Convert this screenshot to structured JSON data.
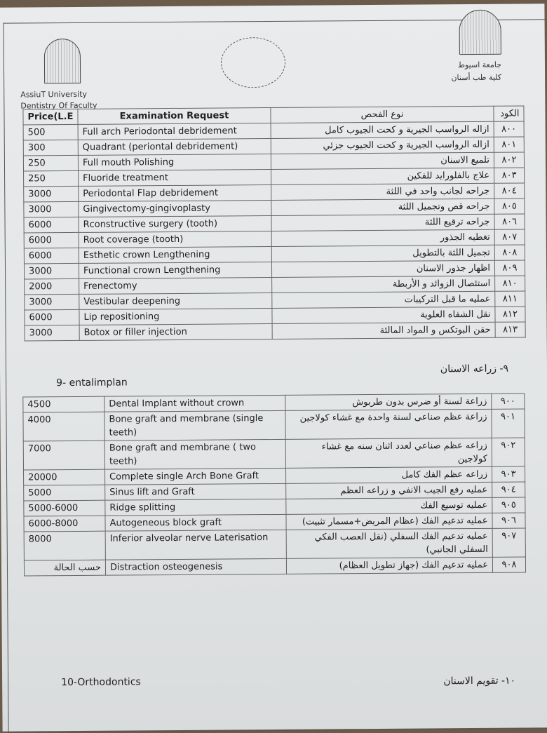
{
  "header": {
    "university_en": "AssiuT University",
    "faculty_en": "Dentistry Of Faculty",
    "university_ar": "جامعة اسيوط",
    "faculty_ar": "كلية طب أسنان"
  },
  "table1": {
    "headers": {
      "price": "Price(L.E",
      "exam": "Examination Request",
      "exam_ar": "نوع الفحص",
      "code": "الكود"
    },
    "rows": [
      {
        "price": "500",
        "exam": "Full arch Periodontal debridement",
        "exam_ar": "ازاله الرواسب الجيرية و كحت الجيوب كامل",
        "code": "٨٠٠"
      },
      {
        "price": "300",
        "exam": "Quadrant (periontal debridement)",
        "exam_ar": "ازاله الرواسب الجيرية و كحت الجيوب جزئي",
        "code": "٨٠١"
      },
      {
        "price": "250",
        "exam": "Full mouth Polishing",
        "exam_ar": "تلميع الاسنان",
        "code": "٨٠٢"
      },
      {
        "price": "250",
        "exam": "Fluoride treatment",
        "exam_ar": "علاج بالفلورايد للفكين",
        "code": "٨٠٣"
      },
      {
        "price": "3000",
        "exam": "Periodontal Flap debridement",
        "exam_ar": "جراحه لجانب واحد في اللثة",
        "code": "٨٠٤"
      },
      {
        "price": "3000",
        "exam": "Gingivectomy-gingivoplasty",
        "exam_ar": "جراحه قص وتجميل اللثة",
        "code": "٨٠٥"
      },
      {
        "price": "6000",
        "exam": "Rconstructive surgery (tooth)",
        "exam_ar": "جراحه ترقيع اللثة",
        "code": "٨٠٦"
      },
      {
        "price": "6000",
        "exam": "Root coverage (tooth)",
        "exam_ar": "تغطيه الجذور",
        "code": "٨٠٧"
      },
      {
        "price": "6000",
        "exam": "Esthetic crown Lengthening",
        "exam_ar": "تجميل اللثة بالتطويل",
        "code": "٨٠٨"
      },
      {
        "price": "3000",
        "exam": "Functional crown Lengthening",
        "exam_ar": "اظهار جذور الاسنان",
        "code": "٨٠٩"
      },
      {
        "price": "2000",
        "exam": "Frenectomy",
        "exam_ar": "استئصال الزوائد و الأربطة",
        "code": "٨١٠"
      },
      {
        "price": "3000",
        "exam": "Vestibular deepening",
        "exam_ar": "عمليه ما قبل التركيبات",
        "code": "٨١١"
      },
      {
        "price": "6000",
        "exam": "Lip repositioning",
        "exam_ar": "نقل الشفاه العلوية",
        "code": "٨١٢"
      },
      {
        "price": "3000",
        "exam": "Botox or filler injection",
        "exam_ar": "حقن البوتكس و المواد المالئة",
        "code": "٨١٣"
      }
    ]
  },
  "section9": {
    "title_en": "9- entalimplan",
    "title_ar": "٩- زراعه الاسنان"
  },
  "table2": {
    "rows": [
      {
        "price": "4500",
        "exam": "Dental  Implant  without  crown",
        "exam_ar": "زراعة لسنة أو ضرس بدون طربوش",
        "code": "٩٠٠"
      },
      {
        "price": "4000",
        "exam": "Bone graft and membrane  (single teeth)",
        "exam_ar": "زراعة عظم صناعى لسنة واحدة مع غشاء كولاجين",
        "code": "٩٠١"
      },
      {
        "price": "7000",
        "exam": "Bone graft and membrane  ( two teeth)",
        "exam_ar": "زراعه عظم صناعي لعدد اثنان سنه مع غشاء كولاجين",
        "code": "٩٠٢"
      },
      {
        "price": "20000",
        "exam": "Complete single Arch Bone Graft",
        "exam_ar": "زراعه عظم الفك كامل",
        "code": "٩٠٣"
      },
      {
        "price": "5000",
        "exam": "Sinus lift and Graft",
        "exam_ar": "عمليه رفع الجيب الانفي و زراعه العظم",
        "code": "٩٠٤"
      },
      {
        "price": "5000-6000",
        "exam": "Ridge splitting",
        "exam_ar": "عمليه توسيع الفك",
        "code": "٩٠٥"
      },
      {
        "price": "6000-8000",
        "exam": "Autogeneous block graft",
        "exam_ar": "عمليه تدعيم الفك (عظام المريض+مسمار تثبيت)",
        "code": "٩٠٦"
      },
      {
        "price": "8000",
        "exam": "Inferior alveolar nerve Laterisation",
        "exam_ar": "عمليه تدعيم الفك السفلي (نقل العصب الفكي السفلي الجانبي)",
        "code": "٩٠٧"
      },
      {
        "price": "حسب الحالة",
        "exam": "Distraction osteogenesis",
        "exam_ar": "عمليه تدعيم الفك (جهاز تطويل العظام)",
        "code": "٩٠٨"
      }
    ]
  },
  "section10": {
    "title_en": "10-Orthodontics",
    "title_ar": "١٠- تقويم الاسنان"
  }
}
